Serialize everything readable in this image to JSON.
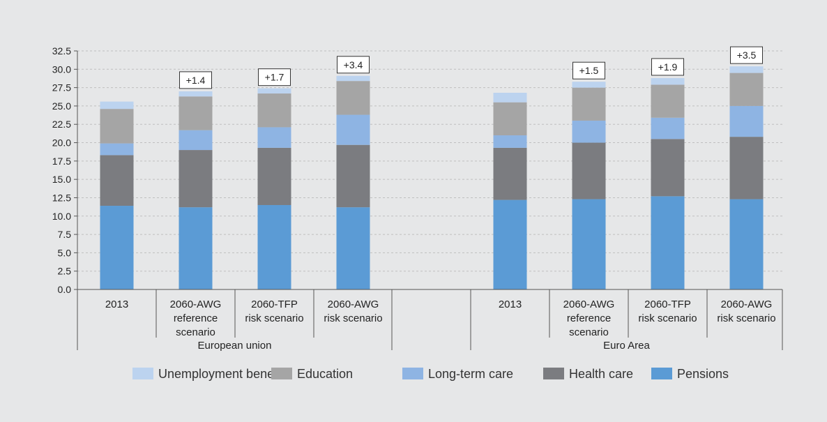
{
  "colors": {
    "background": "#e6e7e8",
    "gridline": "#bfbfbf",
    "axis": "#555555"
  },
  "chart_data": {
    "type": "bar",
    "stacked": true,
    "title": "",
    "xlabel": "",
    "ylabel": "",
    "ylim": [
      0,
      32.5
    ],
    "yticks": [
      "0.0",
      "2.5",
      "5.0",
      "7.5",
      "10.0",
      "12.5",
      "15.0",
      "17.5",
      "20.0",
      "22.5",
      "25.0",
      "27.5",
      "30.0",
      "32.5"
    ],
    "grid": true,
    "legend_position": "bottom",
    "groups": [
      {
        "name": "European union",
        "categories": [
          {
            "label": [
              "2013"
            ],
            "annotation": "",
            "values": {
              "pensions": 11.4,
              "health": 6.9,
              "ltc": 1.6,
              "education": 4.7,
              "unemployment": 1.0
            }
          },
          {
            "label": [
              "2060-AWG",
              "reference",
              "scenario"
            ],
            "annotation": "+1.4",
            "values": {
              "pensions": 11.2,
              "health": 7.8,
              "ltc": 2.7,
              "education": 4.6,
              "unemployment": 0.7
            }
          },
          {
            "label": [
              "2060-TFP",
              "risk scenario"
            ],
            "annotation": "+1.7",
            "values": {
              "pensions": 11.5,
              "health": 7.8,
              "ltc": 2.8,
              "education": 4.6,
              "unemployment": 0.7
            }
          },
          {
            "label": [
              "2060-AWG",
              "risk scenario"
            ],
            "annotation": "+3.4",
            "values": {
              "pensions": 11.2,
              "health": 8.5,
              "ltc": 4.1,
              "education": 4.6,
              "unemployment": 0.7
            }
          }
        ]
      },
      {
        "name": "Euro Area",
        "categories": [
          {
            "label": [
              "2013"
            ],
            "annotation": "",
            "values": {
              "pensions": 12.2,
              "health": 7.1,
              "ltc": 1.7,
              "education": 4.5,
              "unemployment": 1.3
            }
          },
          {
            "label": [
              "2060-AWG",
              "reference",
              "scenario"
            ],
            "annotation": "+1.5",
            "values": {
              "pensions": 12.3,
              "health": 7.7,
              "ltc": 3.0,
              "education": 4.5,
              "unemployment": 0.8
            }
          },
          {
            "label": [
              "2060-TFP",
              "risk scenario"
            ],
            "annotation": "+1.9",
            "values": {
              "pensions": 12.7,
              "health": 7.8,
              "ltc": 2.9,
              "education": 4.5,
              "unemployment": 0.9
            }
          },
          {
            "label": [
              "2060-AWG",
              "risk scenario"
            ],
            "annotation": "+3.5",
            "values": {
              "pensions": 12.3,
              "health": 8.5,
              "ltc": 4.2,
              "education": 4.5,
              "unemployment": 0.9
            }
          }
        ]
      }
    ],
    "series": [
      {
        "key": "pensions",
        "name": "Pensions",
        "color": "#5b9bd5"
      },
      {
        "key": "health",
        "name": "Health care",
        "color": "#7b7c80"
      },
      {
        "key": "ltc",
        "name": "Long-term care",
        "color": "#8eb4e3"
      },
      {
        "key": "education",
        "name": "Education",
        "color": "#a5a5a5"
      },
      {
        "key": "unemployment",
        "name": "Unemployment benefits",
        "color": "#bcd3ef"
      }
    ],
    "legend_order": [
      "unemployment",
      "education",
      "ltc",
      "health",
      "pensions"
    ]
  }
}
